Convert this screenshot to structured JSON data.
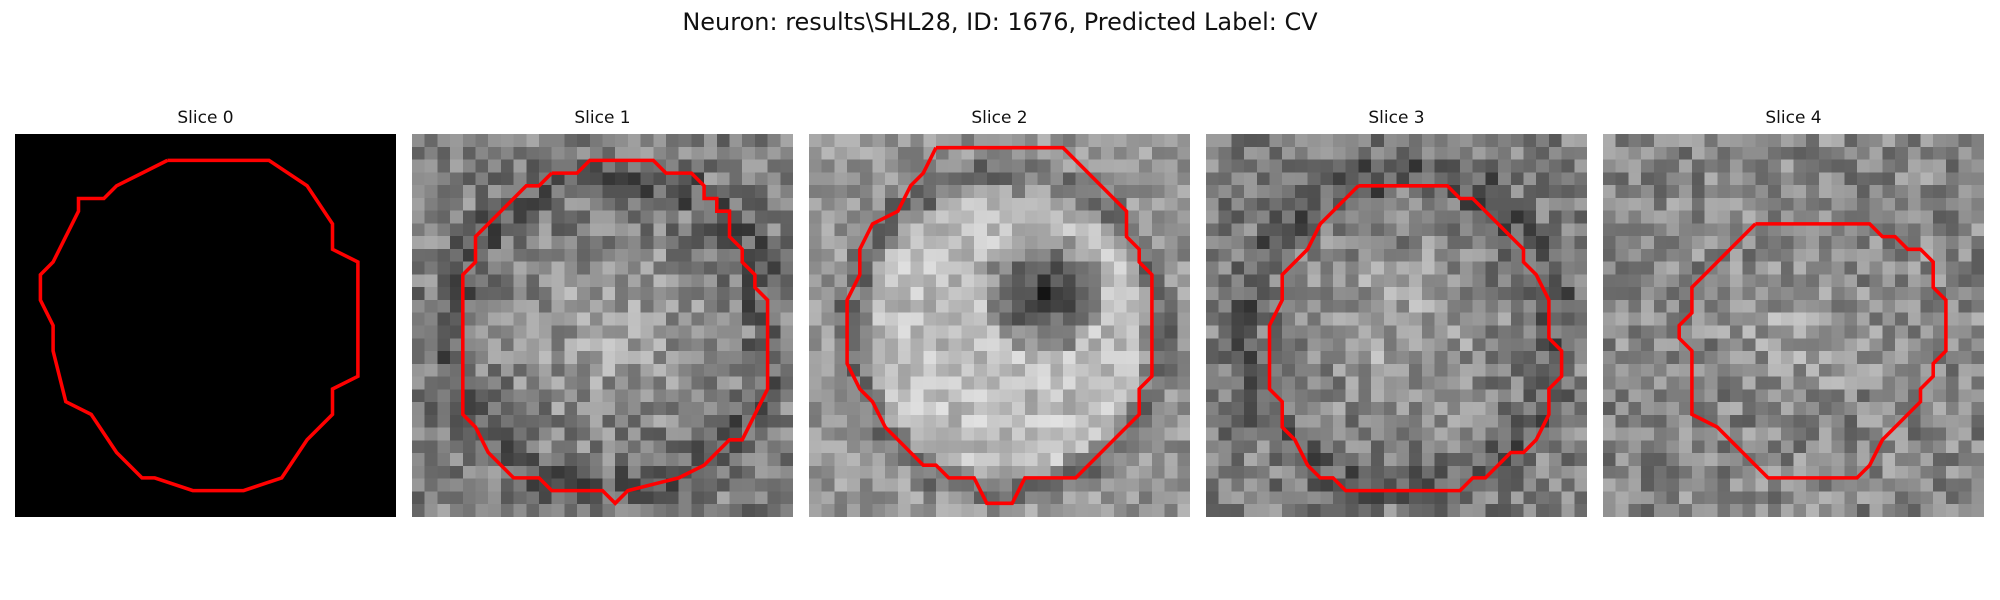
{
  "figure": {
    "title": "Neuron: results\\SHL28, ID: 1676, Predicted Label: CV"
  },
  "contour_color": "#ff0000",
  "panels": [
    {
      "title": "Slice 0",
      "style": "black"
    },
    {
      "title": "Slice 1",
      "style": "noise-bright-blob"
    },
    {
      "title": "Slice 2",
      "style": "noise-bright-ring-dark-center"
    },
    {
      "title": "Slice 3",
      "style": "noise-bright-blob"
    },
    {
      "title": "Slice 4",
      "style": "noise-faint-blob"
    }
  ]
}
